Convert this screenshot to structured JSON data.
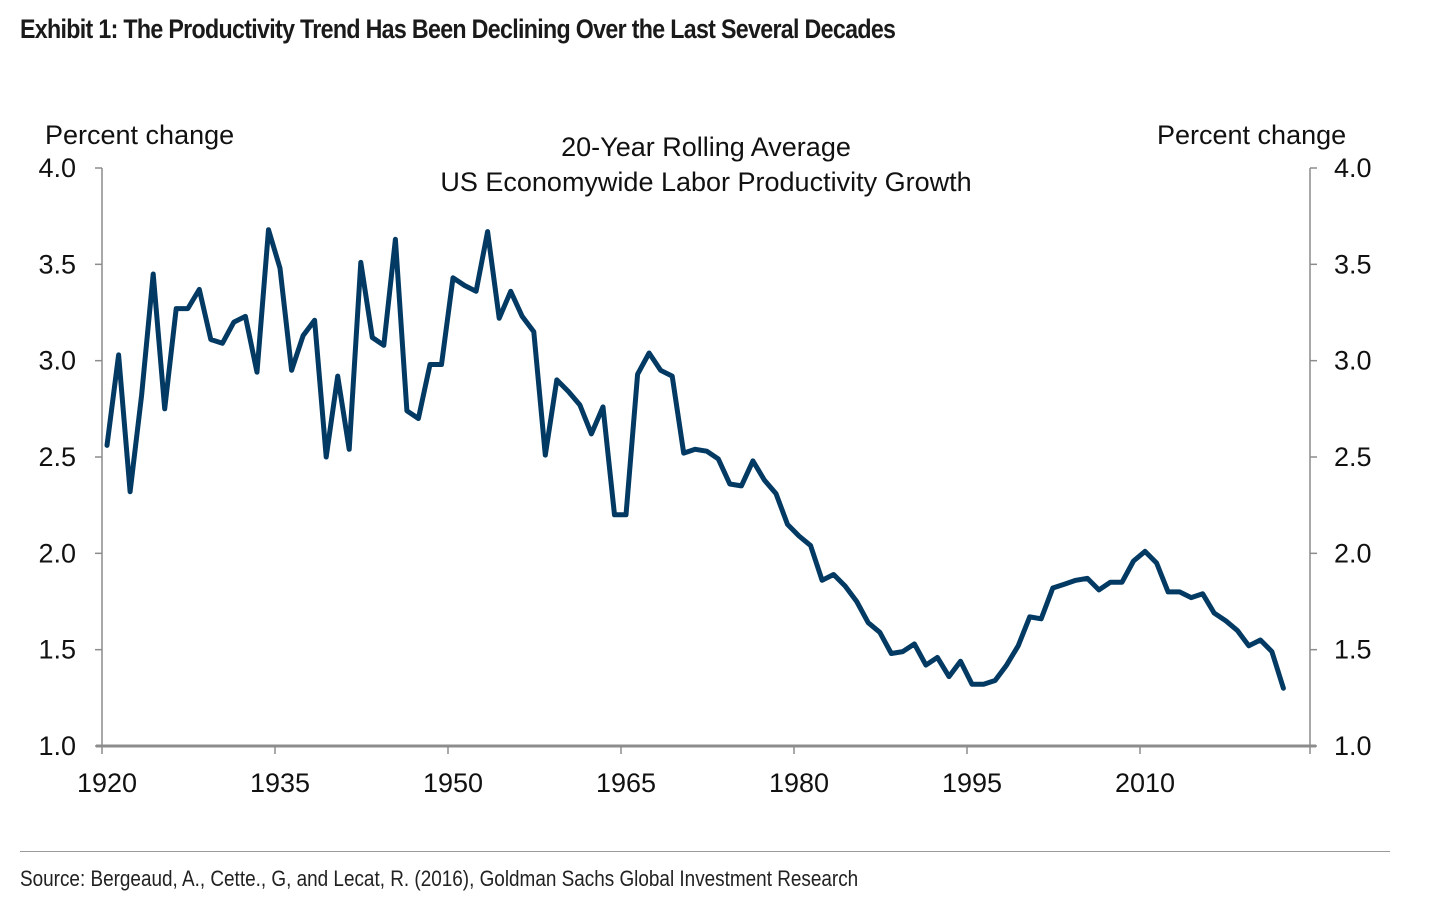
{
  "exhibit_title": "Exhibit 1: The Productivity Trend Has Been Declining Over the Last Several Decades",
  "source": "Source: Bergeaud, A., Cette., G, and Lecat, R. (2016), Goldman Sachs Global Investment Research",
  "colors": {
    "series": "#033a63",
    "axis": "#8c8c8c",
    "text": "#111111"
  },
  "chart_data": {
    "type": "line",
    "title": [
      "20-Year Rolling Average",
      "US Economywide Labor Productivity Growth"
    ],
    "ylabel_left": "Percent change",
    "ylabel_right": "Percent change",
    "xlabel": "",
    "ylim": [
      1.0,
      4.0
    ],
    "xlim": [
      1920,
      2025
    ],
    "yticks": [
      "1.0",
      "1.5",
      "2.0",
      "2.5",
      "3.0",
      "3.5",
      "4.0"
    ],
    "ytick_values": [
      1.0,
      1.5,
      2.0,
      2.5,
      3.0,
      3.5,
      4.0
    ],
    "xticks": [
      "1920",
      "1935",
      "1950",
      "1965",
      "1980",
      "1995",
      "2010"
    ],
    "xtick_values": [
      1920,
      1935,
      1950,
      1965,
      1980,
      1995,
      2010
    ],
    "grid": false,
    "legend": "none",
    "series": [
      {
        "name": "20-Year Rolling Average US Economywide Labor Productivity Growth",
        "x_start": 1921,
        "x_step": 1,
        "values": [
          2.56,
          3.03,
          2.32,
          2.82,
          3.45,
          2.75,
          3.27,
          3.27,
          3.37,
          3.11,
          3.09,
          3.2,
          3.23,
          2.94,
          3.68,
          3.48,
          2.95,
          3.13,
          3.21,
          2.5,
          2.92,
          2.54,
          3.51,
          3.12,
          3.08,
          3.63,
          2.74,
          2.7,
          2.98,
          2.98,
          3.43,
          3.39,
          3.36,
          3.67,
          3.22,
          3.36,
          3.23,
          3.15,
          2.51,
          2.9,
          2.84,
          2.77,
          2.62,
          2.76,
          2.2,
          2.2,
          2.93,
          3.04,
          2.95,
          2.92,
          2.52,
          2.54,
          2.53,
          2.49,
          2.36,
          2.35,
          2.48,
          2.38,
          2.31,
          2.15,
          2.09,
          2.04,
          1.86,
          1.89,
          1.83,
          1.75,
          1.64,
          1.59,
          1.48,
          1.49,
          1.53,
          1.42,
          1.46,
          1.36,
          1.44,
          1.32,
          1.32,
          1.34,
          1.42,
          1.52,
          1.67,
          1.66,
          1.82,
          1.84,
          1.86,
          1.87,
          1.81,
          1.85,
          1.85,
          1.96,
          2.01,
          1.95,
          1.8,
          1.8,
          1.77,
          1.79,
          1.69,
          1.65,
          1.6,
          1.52,
          1.55,
          1.49,
          1.3
        ]
      }
    ]
  }
}
